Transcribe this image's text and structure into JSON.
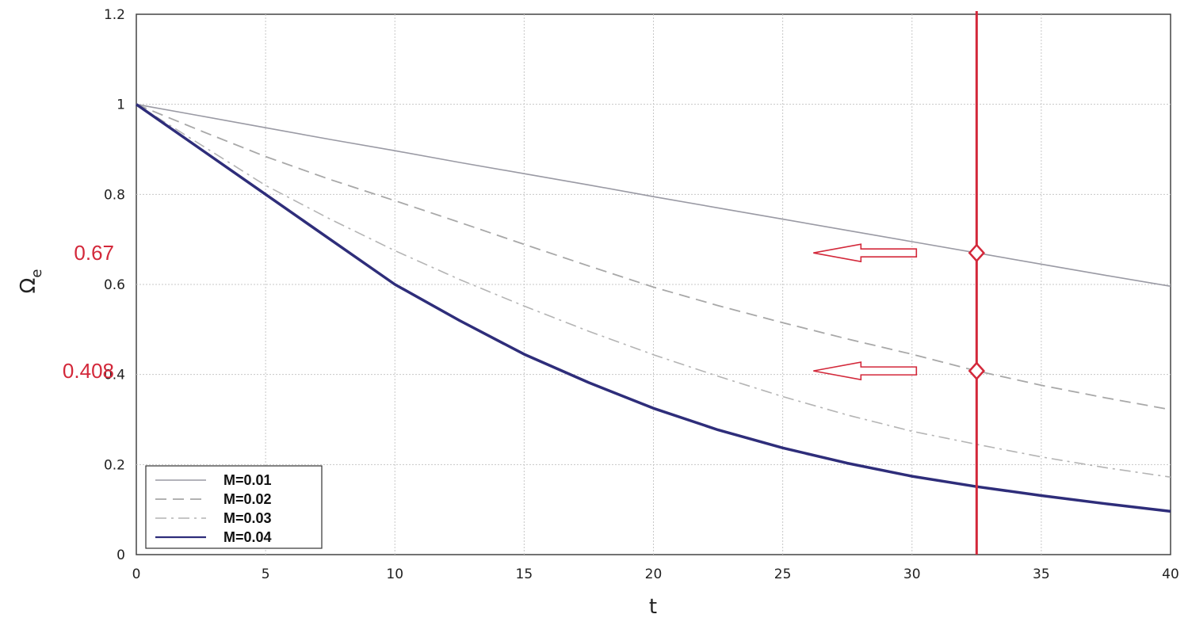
{
  "chart_data": {
    "type": "line",
    "xlabel": "t",
    "ylabel": "Ω",
    "ylabel_subscript": "e",
    "xlim": [
      0,
      40
    ],
    "ylim": [
      0,
      1.2
    ],
    "x_ticks": [
      "0",
      "5",
      "10",
      "15",
      "20",
      "25",
      "30",
      "35",
      "40"
    ],
    "y_ticks": [
      "0",
      "0.2",
      "0.4",
      "0.6",
      "0.8",
      "1",
      "1.2"
    ],
    "grid": true,
    "legend_position": "bottom-left",
    "x": [
      0,
      2.5,
      5,
      7.5,
      10,
      12.5,
      15,
      17.5,
      20,
      22.5,
      25,
      27.5,
      30,
      32.5,
      35,
      37.5,
      40
    ],
    "series": [
      {
        "name": "M=0.01",
        "style": "solid-thin",
        "color": "#9a9aa4",
        "values": [
          1.0,
          0.974,
          0.948,
          0.922,
          0.897,
          0.871,
          0.846,
          0.821,
          0.795,
          0.77,
          0.745,
          0.72,
          0.695,
          0.67,
          0.645,
          0.62,
          0.596
        ]
      },
      {
        "name": "M=0.02",
        "style": "dashed",
        "color": "#a8a8a8",
        "values": [
          1.0,
          0.941,
          0.884,
          0.833,
          0.786,
          0.738,
          0.689,
          0.641,
          0.594,
          0.553,
          0.515,
          0.479,
          0.445,
          0.408,
          0.376,
          0.348,
          0.322
        ]
      },
      {
        "name": "M=0.03",
        "style": "dash-dot",
        "color": "#b4b4b4",
        "values": [
          1.0,
          0.91,
          0.82,
          0.745,
          0.675,
          0.611,
          0.552,
          0.496,
          0.444,
          0.396,
          0.351,
          0.31,
          0.274,
          0.245,
          0.217,
          0.193,
          0.172
        ]
      },
      {
        "name": "M=0.04",
        "style": "solid-bold",
        "color": "#2e2d7a",
        "values": [
          1.0,
          0.9,
          0.8,
          0.7,
          0.6,
          0.52,
          0.445,
          0.382,
          0.325,
          0.277,
          0.237,
          0.203,
          0.174,
          0.151,
          0.131,
          0.113,
          0.096
        ]
      }
    ],
    "annotations": {
      "vertical_line_x": 32.5,
      "vertical_line_color": "#d3283a",
      "markers": [
        {
          "x": 32.5,
          "y": 0.67,
          "label": "0.67"
        },
        {
          "x": 32.5,
          "y": 0.408,
          "label": "0.408"
        }
      ],
      "arrow_color": "#d3283a"
    }
  }
}
